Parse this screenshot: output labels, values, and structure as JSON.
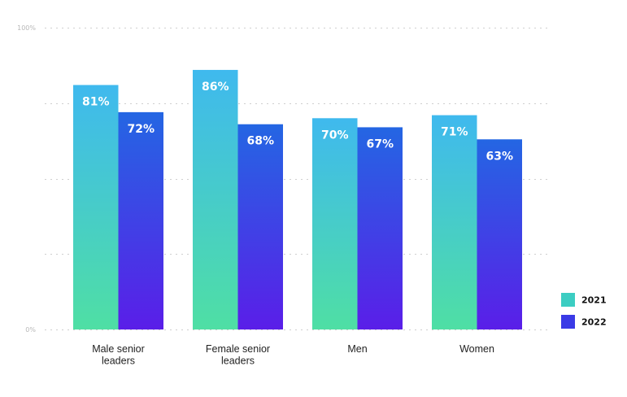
{
  "chart_data": {
    "type": "bar",
    "categories": [
      [
        "Male senior",
        "leaders"
      ],
      [
        "Female senior",
        "leaders"
      ],
      [
        "Men"
      ],
      [
        "Women"
      ]
    ],
    "series": [
      {
        "name": "2021",
        "values": [
          81,
          86,
          70,
          71
        ],
        "value_labels": [
          "81%",
          "86%",
          "70%",
          "71%"
        ],
        "gradient": [
          "#3fb9ee",
          "#4fdfa4"
        ]
      },
      {
        "name": "2022",
        "values": [
          72,
          68,
          67,
          63
        ],
        "value_labels": [
          "72%",
          "68%",
          "67%",
          "63%"
        ],
        "gradient": [
          "#2466e3",
          "#5a1ee8"
        ]
      }
    ],
    "legend_swatches": {
      "2021": "#3ccdc2",
      "2022": "#3a3ae6"
    },
    "ylim": [
      0,
      100
    ],
    "ytick_labels": {
      "top": "100%",
      "bottom": "0%"
    },
    "gridlines": [
      0,
      25,
      50,
      75,
      100
    ],
    "grid": true,
    "legend": "bottom-right",
    "title": "",
    "xlabel": "",
    "ylabel": ""
  }
}
